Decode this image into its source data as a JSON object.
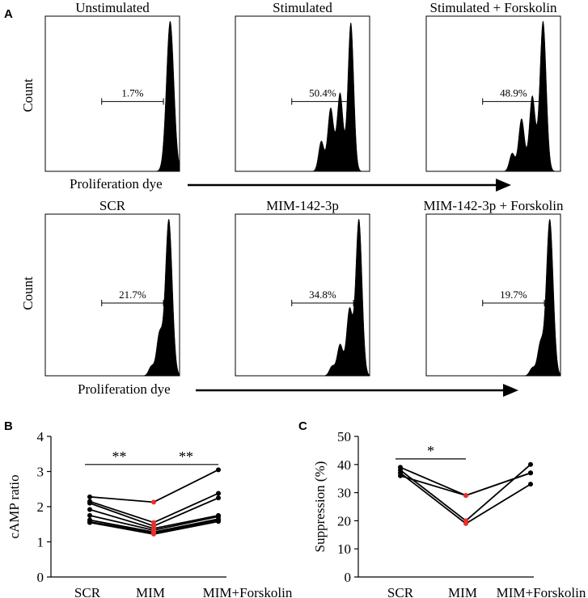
{
  "panels": {
    "A": {
      "label": "A",
      "ylabel": "Count",
      "xlabel": "Proliferation dye",
      "rows": [
        [
          {
            "title": "Unstimulated",
            "pct": "1.7%",
            "peaks": [
              {
                "pos": 0.93,
                "h": 1.0,
                "w": 0.028
              }
            ]
          },
          {
            "title": "Stimulated",
            "pct": "50.4%",
            "peaks": [
              {
                "pos": 0.64,
                "h": 0.2,
                "w": 0.02
              },
              {
                "pos": 0.71,
                "h": 0.42,
                "w": 0.022
              },
              {
                "pos": 0.78,
                "h": 0.52,
                "w": 0.022
              },
              {
                "pos": 0.86,
                "h": 0.99,
                "w": 0.022
              }
            ]
          },
          {
            "title": "Stimulated + Forskolin",
            "pct": "48.9%",
            "peaks": [
              {
                "pos": 0.64,
                "h": 0.12,
                "w": 0.02
              },
              {
                "pos": 0.71,
                "h": 0.35,
                "w": 0.022
              },
              {
                "pos": 0.79,
                "h": 0.5,
                "w": 0.022
              },
              {
                "pos": 0.87,
                "h": 1.0,
                "w": 0.024
              }
            ]
          }
        ],
        [
          {
            "title": "SCR",
            "pct": "21.7%",
            "peaks": [
              {
                "pos": 0.79,
                "h": 0.06,
                "w": 0.02
              },
              {
                "pos": 0.85,
                "h": 0.26,
                "w": 0.022
              },
              {
                "pos": 0.92,
                "h": 1.0,
                "w": 0.026
              }
            ]
          },
          {
            "title": "MIM-142-3p",
            "pct": "34.8%",
            "peaks": [
              {
                "pos": 0.72,
                "h": 0.06,
                "w": 0.02
              },
              {
                "pos": 0.78,
                "h": 0.2,
                "w": 0.022
              },
              {
                "pos": 0.85,
                "h": 0.42,
                "w": 0.022
              },
              {
                "pos": 0.92,
                "h": 1.0,
                "w": 0.024
              }
            ]
          },
          {
            "title": "MIM-142-3p + Forskolin",
            "pct": "19.7%",
            "peaks": [
              {
                "pos": 0.79,
                "h": 0.05,
                "w": 0.02
              },
              {
                "pos": 0.85,
                "h": 0.2,
                "w": 0.022
              },
              {
                "pos": 0.92,
                "h": 1.0,
                "w": 0.026
              }
            ]
          }
        ]
      ]
    },
    "B": {
      "label": "B"
    },
    "C": {
      "label": "C"
    }
  },
  "chart_data": [
    {
      "type": "line",
      "panel": "B",
      "ylabel": "cAMP ratio",
      "categories": [
        "SCR",
        "MIM",
        "MIM+Forskolin"
      ],
      "ylim": [
        0,
        4
      ],
      "yticks": [
        0,
        1,
        2,
        3,
        4
      ],
      "highlight_category": "MIM",
      "highlight_color": "#e8302a",
      "marker_color": "#000000",
      "series": [
        {
          "values": [
            2.28,
            2.13,
            3.05
          ]
        },
        {
          "values": [
            2.15,
            1.55,
            2.38
          ]
        },
        {
          "values": [
            2.1,
            1.45,
            2.25
          ]
        },
        {
          "values": [
            1.92,
            1.38,
            1.75
          ]
        },
        {
          "values": [
            1.75,
            1.33,
            1.72
          ]
        },
        {
          "values": [
            1.62,
            1.28,
            1.65
          ]
        },
        {
          "values": [
            1.57,
            1.25,
            1.62
          ]
        },
        {
          "values": [
            1.55,
            1.22,
            1.58
          ]
        }
      ],
      "significance": [
        {
          "from": "SCR",
          "to": "MIM",
          "y": 3.2,
          "label": "**"
        },
        {
          "from": "MIM",
          "to": "MIM+Forskolin",
          "y": 3.2,
          "label": "**"
        }
      ]
    },
    {
      "type": "line",
      "panel": "C",
      "ylabel": "Suppression (%)",
      "categories": [
        "SCR",
        "MIM",
        "MIM+Forskolin"
      ],
      "ylim": [
        0,
        50
      ],
      "yticks": [
        0,
        10,
        20,
        30,
        40,
        50
      ],
      "highlight_category": "MIM",
      "highlight_color": "#e8302a",
      "marker_color": "#000000",
      "series": [
        {
          "values": [
            39,
            29,
            37
          ]
        },
        {
          "values": [
            38,
            20,
            40
          ]
        },
        {
          "values": [
            37,
            19,
            33
          ]
        },
        {
          "values": [
            36,
            29,
            37
          ]
        }
      ],
      "significance": [
        {
          "from": "SCR",
          "to": "MIM",
          "y": 42,
          "label": "*"
        }
      ]
    }
  ]
}
